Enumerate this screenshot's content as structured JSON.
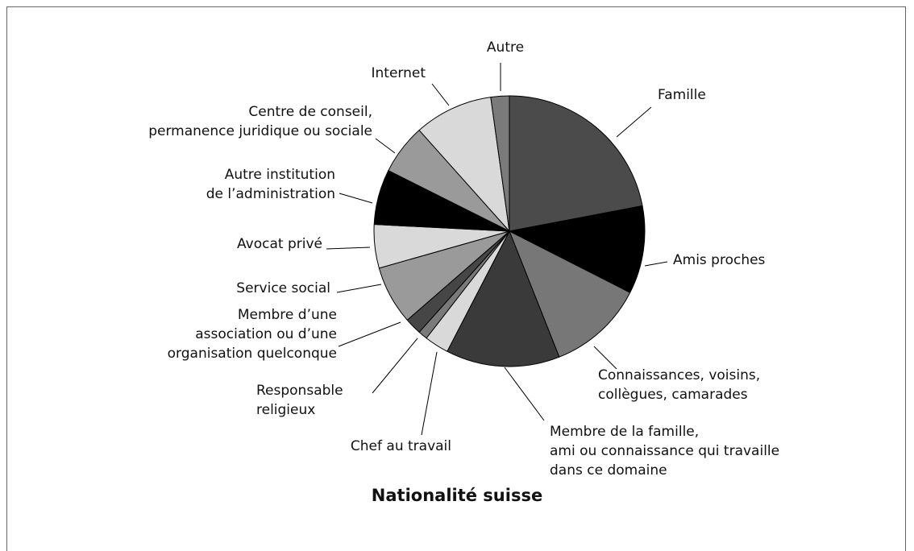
{
  "chart_data": {
    "type": "pie",
    "title": "Nationalité suisse",
    "categories": [
      "Famille",
      "Amis proches",
      "Connaissances, voisins,\ncollègues, camarades",
      "Membre de la famille,\nami ou connaissance qui travaille\ndans ce domaine",
      "Chef au travail",
      "Responsable\nreligieux",
      "Membre d’une\nassociation ou d’une\norganisation quelconque",
      "Service social",
      "Avocat privé",
      "Autre institution\nde l’administration",
      "Centre de conseil,\npermanence juridique ou sociale",
      "Internet",
      "Autre"
    ],
    "values": [
      22,
      10.5,
      11.5,
      13.6,
      2.9,
      1.1,
      2,
      7,
      5.2,
      6.6,
      6,
      9.4,
      2.2
    ],
    "colors": [
      "#4b4b4b",
      "#000000",
      "#777777",
      "#3a3a3a",
      "#d9d9d9",
      "#7a7a7a",
      "#464646",
      "#9a9a9a",
      "#d9d9d9",
      "#000000",
      "#9a9a9a",
      "#d9d9d9",
      "#7a7a7a"
    ]
  }
}
